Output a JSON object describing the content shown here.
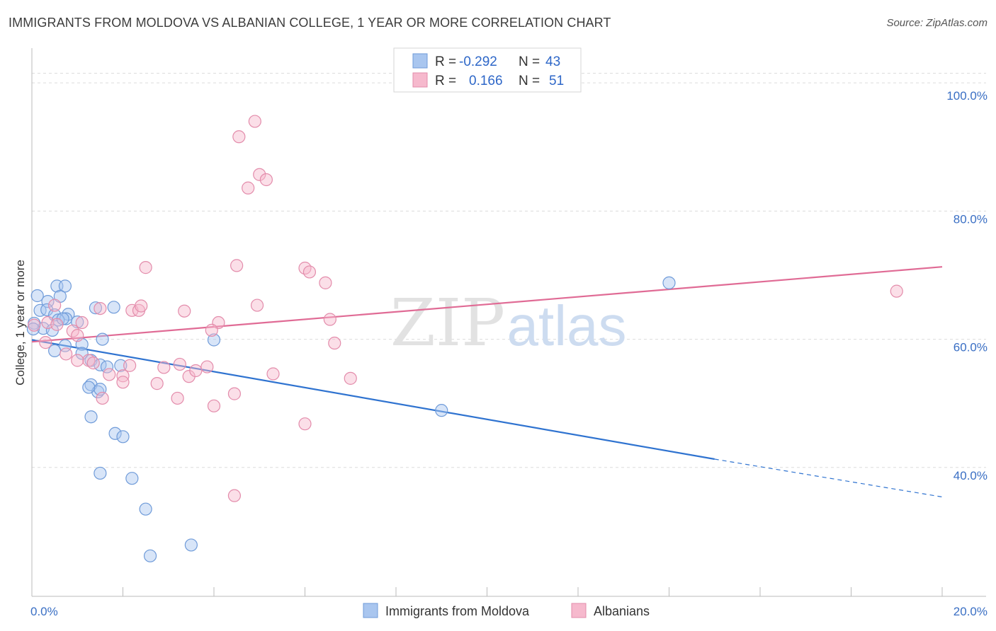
{
  "title": "IMMIGRANTS FROM MOLDOVA VS ALBANIAN COLLEGE, 1 YEAR OR MORE CORRELATION CHART",
  "source": "Source: ZipAtlas.com",
  "watermark": {
    "zip": "ZIP",
    "atlas": "atlas"
  },
  "colors": {
    "blue_fill": "#a9c6ef",
    "blue_stroke": "#6f9bd9",
    "blue_line": "#2f73d0",
    "pink_fill": "#f6b9cd",
    "pink_stroke": "#e38cab",
    "pink_line": "#e06b95",
    "grid": "#dcdcdc",
    "axis_label": "#3a6fc4"
  },
  "legend": {
    "rows": [
      {
        "r_label": "R =",
        "r_value": "-0.292",
        "n_label": "N =",
        "n_value": "43"
      },
      {
        "r_label": "R =",
        "r_value": "0.166",
        "n_label": "N =",
        "n_value": "51"
      }
    ]
  },
  "chart_data": {
    "type": "scatter",
    "title": "IMMIGRANTS FROM MOLDOVA VS ALBANIAN COLLEGE, 1 YEAR OR MORE CORRELATION CHART",
    "xlabel": "",
    "ylabel": "College, 1 year or more",
    "xlim": [
      0,
      20
    ],
    "ylim": [
      20,
      103
    ],
    "x_tick_labels": [
      "0.0%",
      "20.0%"
    ],
    "y_ticks": [
      40,
      60,
      80,
      100
    ],
    "y_tick_labels": [
      "40.0%",
      "60.0%",
      "80.0%",
      "100.0%"
    ],
    "series": [
      {
        "name": "Immigrants from Moldova",
        "color": "blue",
        "points": [
          [
            0.12,
            66.8
          ],
          [
            0.35,
            65.9
          ],
          [
            0.18,
            64.5
          ],
          [
            0.33,
            64.6
          ],
          [
            0.55,
            68.3
          ],
          [
            0.73,
            68.3
          ],
          [
            0.62,
            66.7
          ],
          [
            0.8,
            63.9
          ],
          [
            0.75,
            63.2
          ],
          [
            0.5,
            63.8
          ],
          [
            0.58,
            63.0
          ],
          [
            0.68,
            63.2
          ],
          [
            0.25,
            61.7
          ],
          [
            0.45,
            61.4
          ],
          [
            0.05,
            62.5
          ],
          [
            1.0,
            62.7
          ],
          [
            0.03,
            61.6
          ],
          [
            1.8,
            65.0
          ],
          [
            1.4,
            64.9
          ],
          [
            1.55,
            60.0
          ],
          [
            1.1,
            59.2
          ],
          [
            0.73,
            59.0
          ],
          [
            0.5,
            58.2
          ],
          [
            1.1,
            57.8
          ],
          [
            1.3,
            56.7
          ],
          [
            1.5,
            56.0
          ],
          [
            1.65,
            55.7
          ],
          [
            1.95,
            55.9
          ],
          [
            1.3,
            52.9
          ],
          [
            1.45,
            51.8
          ],
          [
            1.25,
            52.5
          ],
          [
            1.5,
            52.2
          ],
          [
            1.3,
            47.9
          ],
          [
            1.83,
            45.3
          ],
          [
            2.0,
            44.8
          ],
          [
            1.5,
            39.1
          ],
          [
            2.2,
            38.3
          ],
          [
            2.5,
            33.5
          ],
          [
            2.6,
            26.2
          ],
          [
            3.5,
            27.9
          ],
          [
            4.0,
            59.9
          ],
          [
            14.0,
            68.8
          ],
          [
            9.0,
            48.9
          ]
        ]
      },
      {
        "name": "Albanians",
        "color": "pink",
        "points": [
          [
            0.05,
            62.2
          ],
          [
            0.3,
            59.5
          ],
          [
            0.35,
            62.6
          ],
          [
            0.5,
            65.3
          ],
          [
            0.55,
            62.3
          ],
          [
            0.75,
            57.7
          ],
          [
            0.9,
            61.3
          ],
          [
            1.0,
            60.6
          ],
          [
            1.1,
            62.6
          ],
          [
            1.25,
            56.7
          ],
          [
            1.35,
            56.3
          ],
          [
            1.5,
            64.8
          ],
          [
            1.55,
            50.8
          ],
          [
            1.7,
            54.5
          ],
          [
            2.0,
            54.3
          ],
          [
            2.15,
            55.9
          ],
          [
            2.0,
            53.3
          ],
          [
            2.2,
            64.5
          ],
          [
            2.35,
            64.5
          ],
          [
            2.4,
            65.2
          ],
          [
            2.5,
            71.2
          ],
          [
            2.75,
            53.1
          ],
          [
            2.9,
            55.6
          ],
          [
            3.2,
            50.8
          ],
          [
            3.25,
            56.1
          ],
          [
            3.35,
            64.4
          ],
          [
            3.45,
            54.2
          ],
          [
            3.6,
            55.1
          ],
          [
            3.85,
            55.7
          ],
          [
            4.0,
            49.6
          ],
          [
            4.1,
            62.6
          ],
          [
            4.5,
            71.5
          ],
          [
            4.45,
            51.5
          ],
          [
            4.45,
            35.6
          ],
          [
            4.55,
            91.6
          ],
          [
            4.75,
            83.6
          ],
          [
            5.0,
            85.7
          ],
          [
            5.15,
            84.9
          ],
          [
            4.95,
            65.3
          ],
          [
            5.3,
            54.6
          ],
          [
            6.0,
            71.1
          ],
          [
            6.1,
            70.5
          ],
          [
            6.0,
            46.8
          ],
          [
            6.45,
            68.8
          ],
          [
            6.55,
            63.1
          ],
          [
            6.65,
            59.4
          ],
          [
            7.0,
            53.9
          ],
          [
            4.9,
            94.0
          ],
          [
            3.95,
            61.4
          ],
          [
            19.0,
            67.5
          ],
          [
            1.0,
            56.7
          ]
        ]
      }
    ],
    "trend_lines": [
      {
        "series": "Immigrants from Moldova",
        "x": [
          0,
          15
        ],
        "y": [
          59.9,
          41.3
        ],
        "dashed_extension": {
          "x": [
            15,
            20
          ],
          "y": [
            41.3,
            35.4
          ]
        }
      },
      {
        "series": "Albanians",
        "x": [
          0,
          20
        ],
        "y": [
          59.6,
          71.3
        ]
      }
    ],
    "legend_position": "top-center"
  },
  "bottom_legend": [
    {
      "label": "Immigrants from Moldova",
      "color": "blue"
    },
    {
      "label": "Albanians",
      "color": "pink"
    }
  ]
}
